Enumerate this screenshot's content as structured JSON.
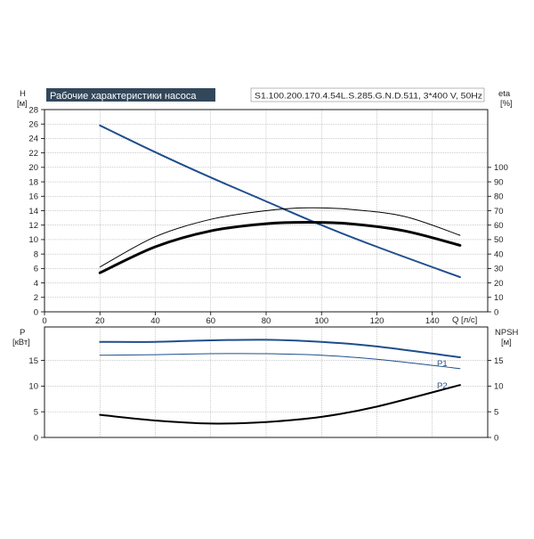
{
  "title": "Рабочие характеристики насоса",
  "model": "S1.100.200.170.4.54L.S.285.G.N.D.511, 3*400 V, 50Hz",
  "colors": {
    "title_bg": "#33475b",
    "blue": "#1f4e8c",
    "black": "#000000",
    "grid": "#9a9a9a"
  },
  "chart_data": [
    {
      "id": "head-efficiency",
      "type": "line",
      "x_axis": {
        "label": "Q [л/с]",
        "lim": [
          0,
          160
        ],
        "ticks": [
          0,
          20,
          40,
          60,
          80,
          100,
          120,
          140
        ]
      },
      "y_left": {
        "label_top": "H",
        "label_unit": "[м]",
        "lim": [
          0,
          28
        ],
        "ticks": [
          0,
          2,
          4,
          6,
          8,
          10,
          12,
          14,
          16,
          18,
          20,
          22,
          24,
          26,
          28
        ]
      },
      "y_right": {
        "label_top": "eta",
        "label_unit": "[%]",
        "lim": [
          0,
          140
        ],
        "ticks": [
          0,
          10,
          20,
          30,
          40,
          50,
          60,
          70,
          80,
          90,
          100
        ]
      },
      "grid": true,
      "series": [
        {
          "key": "head",
          "axis": "left",
          "color": "blue",
          "width": 2,
          "x": [
            20,
            40,
            60,
            80,
            100,
            120,
            150
          ],
          "y": [
            25.8,
            22.1,
            18.6,
            15.3,
            12.0,
            9.0,
            4.8
          ]
        },
        {
          "key": "eta_upper",
          "axis": "right",
          "color": "black",
          "width": 1,
          "x": [
            20,
            40,
            60,
            80,
            95,
            110,
            130,
            150
          ],
          "y": [
            31,
            52,
            64,
            70,
            72,
            71,
            66,
            53
          ]
        },
        {
          "key": "eta_lower",
          "axis": "right",
          "color": "black",
          "width": 3,
          "x": [
            20,
            40,
            60,
            80,
            95,
            110,
            130,
            150
          ],
          "y": [
            27,
            45,
            56,
            61,
            62,
            61,
            56,
            46
          ]
        }
      ]
    },
    {
      "id": "power-npsh",
      "type": "line",
      "x_axis": {
        "lim": [
          0,
          160
        ]
      },
      "y_left": {
        "label_top": "P",
        "label_unit": "[кВт]",
        "lim": [
          0,
          21.5
        ],
        "ticks": [
          0,
          5,
          10,
          15
        ]
      },
      "y_right": {
        "label_top": "NPSH",
        "label_unit": "[м]",
        "lim": [
          0,
          21.5
        ],
        "ticks": [
          0,
          5,
          10,
          15
        ]
      },
      "grid": true,
      "series": [
        {
          "key": "P1",
          "name": "P1",
          "axis": "left",
          "color": "blue",
          "width": 2,
          "x": [
            20,
            40,
            60,
            80,
            100,
            120,
            150
          ],
          "y": [
            18.6,
            18.6,
            18.9,
            19.0,
            18.6,
            17.7,
            15.6
          ]
        },
        {
          "key": "P2",
          "name": "P2",
          "axis": "left",
          "color": "blue",
          "width": 1,
          "x": [
            20,
            40,
            60,
            80,
            100,
            120,
            150
          ],
          "y": [
            16.0,
            16.1,
            16.3,
            16.3,
            16.0,
            15.2,
            13.4
          ]
        },
        {
          "key": "npsh",
          "axis": "right",
          "color": "black",
          "width": 2,
          "x": [
            20,
            40,
            60,
            80,
            100,
            120,
            150
          ],
          "y": [
            4.4,
            3.3,
            2.7,
            3.0,
            4.0,
            6.0,
            10.2
          ]
        }
      ]
    }
  ]
}
